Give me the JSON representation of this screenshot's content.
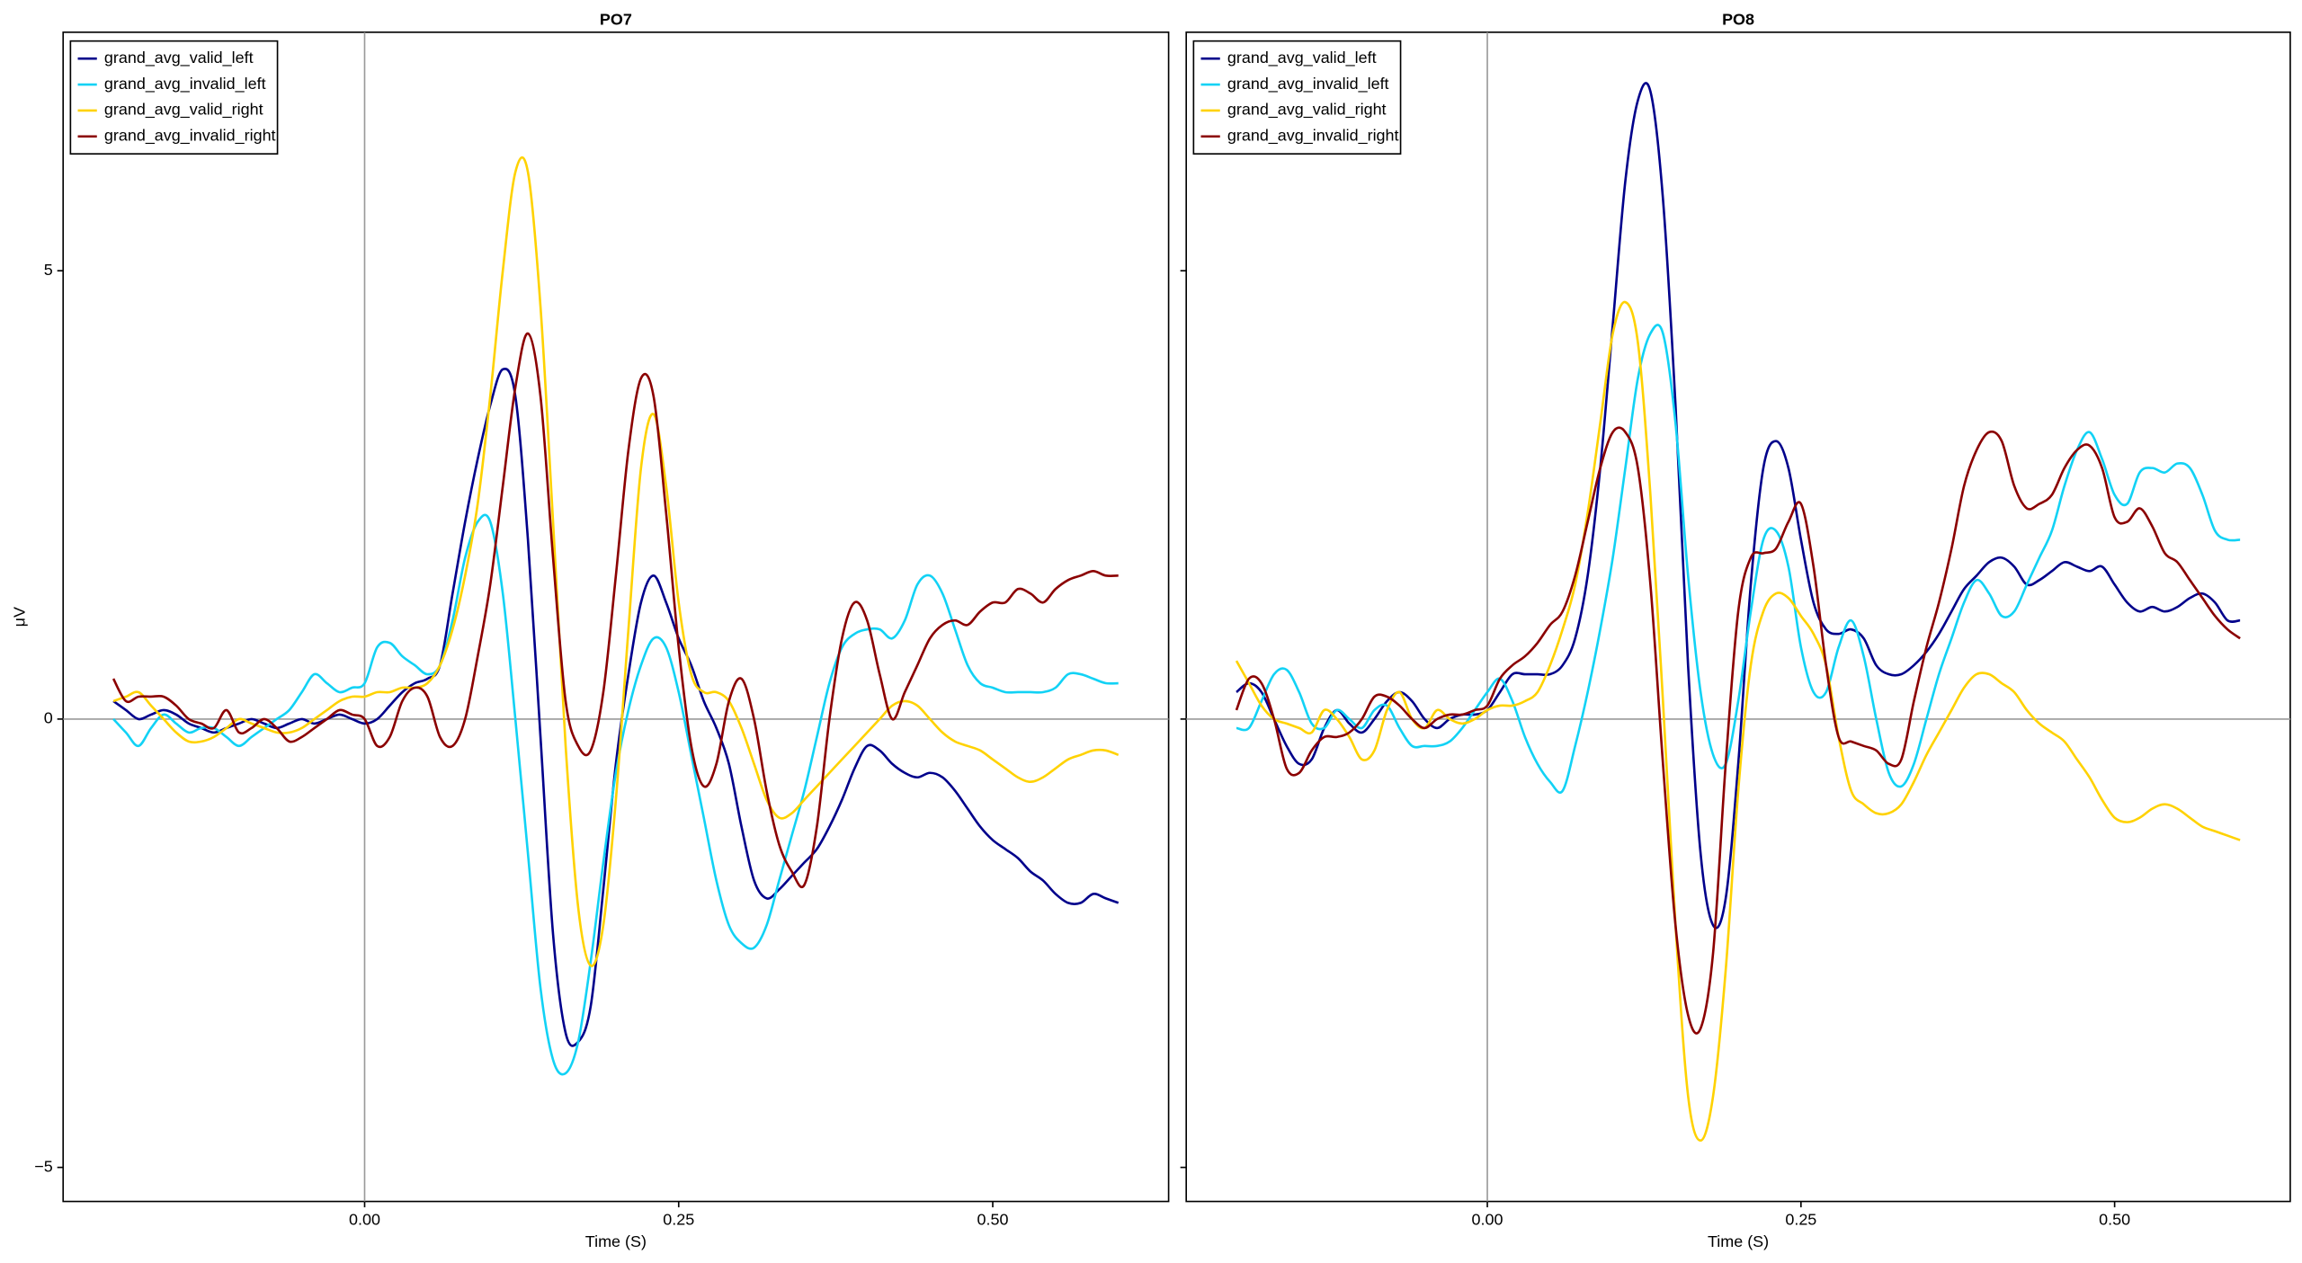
{
  "chart_data": [
    {
      "type": "line",
      "title": "PO7",
      "xlabel": "Time (S)",
      "ylabel": "μV",
      "xlim": [
        -0.24,
        0.64
      ],
      "ylim": [
        -5.38,
        7.66
      ],
      "xticks": [
        {
          "value": 0,
          "label": "0.00"
        },
        {
          "value": 0.25,
          "label": "0.25"
        },
        {
          "value": 0.5,
          "label": "0.50"
        }
      ],
      "yticks": [
        {
          "value": -5,
          "label": "−5"
        },
        0,
        5
      ],
      "ytick_labels": true,
      "zero_lines": true,
      "legend": "upper left",
      "x": [
        -0.2,
        -0.19,
        -0.18,
        -0.17,
        -0.16,
        -0.15,
        -0.14,
        -0.13,
        -0.12,
        -0.11,
        -0.1,
        -0.09,
        -0.08,
        -0.07,
        -0.06,
        -0.05,
        -0.04,
        -0.03,
        -0.02,
        -0.01,
        0,
        0.01,
        0.02,
        0.03,
        0.04,
        0.05,
        0.06,
        0.07,
        0.08,
        0.09,
        0.1,
        0.11,
        0.12,
        0.13,
        0.14,
        0.15,
        0.16,
        0.17,
        0.18,
        0.19,
        0.2,
        0.21,
        0.22,
        0.23,
        0.24,
        0.25,
        0.26,
        0.27,
        0.28,
        0.29,
        0.3,
        0.31,
        0.32,
        0.33,
        0.34,
        0.35,
        0.36,
        0.37,
        0.38,
        0.39,
        0.4,
        0.41,
        0.42,
        0.43,
        0.44,
        0.45,
        0.46,
        0.47,
        0.48,
        0.49,
        0.5,
        0.51,
        0.52,
        0.53,
        0.54,
        0.55,
        0.56,
        0.57,
        0.58,
        0.59,
        0.6
      ],
      "series": [
        {
          "name": "grand_avg_valid_left",
          "color": "#00008b",
          "values": [
            0.2,
            0.1,
            0.0,
            0.05,
            0.1,
            0.05,
            -0.05,
            -0.1,
            -0.15,
            -0.1,
            -0.05,
            0.0,
            -0.05,
            -0.1,
            -0.05,
            0.0,
            -0.05,
            0.0,
            0.05,
            0.0,
            -0.05,
            0.0,
            0.15,
            0.3,
            0.4,
            0.45,
            0.6,
            1.4,
            2.2,
            2.9,
            3.5,
            3.9,
            3.6,
            2.0,
            -0.2,
            -2.4,
            -3.5,
            -3.6,
            -3.2,
            -1.9,
            -0.5,
            0.5,
            1.3,
            1.6,
            1.3,
            0.9,
            0.6,
            0.2,
            -0.1,
            -0.5,
            -1.2,
            -1.8,
            -2.0,
            -1.9,
            -1.75,
            -1.6,
            -1.45,
            -1.2,
            -0.9,
            -0.55,
            -0.3,
            -0.35,
            -0.5,
            -0.6,
            -0.65,
            -0.6,
            -0.65,
            -0.8,
            -1.0,
            -1.2,
            -1.35,
            -1.45,
            -1.55,
            -1.7,
            -1.8,
            -1.95,
            -2.05,
            -2.05,
            -1.95,
            -2.0,
            -2.05
          ]
        },
        {
          "name": "grand_avg_invalid_left",
          "color": "#12d2f5",
          "values": [
            0,
            -0.15,
            -0.3,
            -0.1,
            0.05,
            -0.05,
            -0.15,
            -0.1,
            -0.1,
            -0.2,
            -0.3,
            -0.2,
            -0.1,
            0.0,
            0.1,
            0.3,
            0.5,
            0.4,
            0.3,
            0.35,
            0.4,
            0.8,
            0.85,
            0.7,
            0.6,
            0.5,
            0.6,
            1.1,
            1.8,
            2.2,
            2.2,
            1.4,
            0.0,
            -1.5,
            -3.0,
            -3.8,
            -3.95,
            -3.6,
            -2.7,
            -1.6,
            -0.6,
            0.1,
            0.6,
            0.9,
            0.8,
            0.3,
            -0.4,
            -1.1,
            -1.8,
            -2.3,
            -2.5,
            -2.55,
            -2.3,
            -1.8,
            -1.3,
            -0.8,
            -0.2,
            0.4,
            0.8,
            0.95,
            1.0,
            1.0,
            0.9,
            1.1,
            1.5,
            1.6,
            1.4,
            1.0,
            0.6,
            0.4,
            0.35,
            0.3,
            0.3,
            0.3,
            0.3,
            0.35,
            0.5,
            0.5,
            0.45,
            0.4,
            0.4
          ]
        },
        {
          "name": "grand_avg_valid_right",
          "color": "#ffd200",
          "values": [
            0.2,
            0.25,
            0.3,
            0.15,
            0.0,
            -0.15,
            -0.25,
            -0.25,
            -0.2,
            -0.1,
            0.0,
            -0.05,
            -0.1,
            -0.15,
            -0.15,
            -0.1,
            0.0,
            0.1,
            0.2,
            0.25,
            0.25,
            0.3,
            0.3,
            0.35,
            0.35,
            0.4,
            0.6,
            1.0,
            1.6,
            2.4,
            3.6,
            5.0,
            6.1,
            6.1,
            4.6,
            2.2,
            -0.3,
            -2.1,
            -2.75,
            -2.3,
            -0.9,
            1.0,
            2.8,
            3.4,
            2.6,
            1.3,
            0.5,
            0.3,
            0.3,
            0.2,
            -0.1,
            -0.5,
            -0.9,
            -1.1,
            -1.05,
            -0.9,
            -0.75,
            -0.6,
            -0.45,
            -0.3,
            -0.15,
            0.0,
            0.15,
            0.2,
            0.15,
            0.0,
            -0.15,
            -0.25,
            -0.3,
            -0.35,
            -0.45,
            -0.55,
            -0.65,
            -0.7,
            -0.65,
            -0.55,
            -0.45,
            -0.4,
            -0.35,
            -0.35,
            -0.4
          ]
        },
        {
          "name": "grand_avg_invalid_right",
          "color": "#8b0000",
          "values": [
            0.45,
            0.2,
            0.25,
            0.25,
            0.25,
            0.15,
            0.0,
            -0.05,
            -0.1,
            0.1,
            -0.15,
            -0.1,
            0.0,
            -0.1,
            -0.25,
            -0.2,
            -0.1,
            0.0,
            0.1,
            0.05,
            0.0,
            -0.3,
            -0.2,
            0.2,
            0.35,
            0.25,
            -0.2,
            -0.3,
            0.0,
            0.7,
            1.5,
            2.6,
            3.7,
            4.3,
            3.6,
            1.8,
            0.2,
            -0.3,
            -0.35,
            0.3,
            1.6,
            3.0,
            3.8,
            3.6,
            2.3,
            0.8,
            -0.3,
            -0.75,
            -0.5,
            0.2,
            0.45,
            0.0,
            -0.8,
            -1.4,
            -1.7,
            -1.85,
            -1.2,
            0.0,
            0.9,
            1.3,
            1.1,
            0.5,
            0.0,
            0.3,
            0.6,
            0.9,
            1.05,
            1.1,
            1.05,
            1.2,
            1.3,
            1.3,
            1.45,
            1.4,
            1.3,
            1.45,
            1.55,
            1.6,
            1.65,
            1.6,
            1.6
          ]
        }
      ]
    },
    {
      "type": "line",
      "title": "PO8",
      "xlabel": "Time (S)",
      "xlim": [
        -0.24,
        0.64
      ],
      "ylim": [
        -5.38,
        7.66
      ],
      "xticks": [
        {
          "value": 0,
          "label": "0.00"
        },
        {
          "value": 0.25,
          "label": "0.25"
        },
        {
          "value": 0.5,
          "label": "0.50"
        }
      ],
      "yticks": [
        -5,
        0,
        5
      ],
      "ytick_labels": false,
      "zero_lines": true,
      "legend": "upper left",
      "x": [
        -0.2,
        -0.19,
        -0.18,
        -0.17,
        -0.16,
        -0.15,
        -0.14,
        -0.13,
        -0.12,
        -0.11,
        -0.1,
        -0.09,
        -0.08,
        -0.07,
        -0.06,
        -0.05,
        -0.04,
        -0.03,
        -0.02,
        -0.01,
        0,
        0.01,
        0.02,
        0.03,
        0.04,
        0.05,
        0.06,
        0.07,
        0.08,
        0.09,
        0.1,
        0.11,
        0.12,
        0.13,
        0.14,
        0.15,
        0.16,
        0.17,
        0.18,
        0.19,
        0.2,
        0.21,
        0.22,
        0.23,
        0.24,
        0.25,
        0.26,
        0.27,
        0.28,
        0.29,
        0.3,
        0.31,
        0.32,
        0.33,
        0.34,
        0.35,
        0.36,
        0.37,
        0.38,
        0.39,
        0.4,
        0.41,
        0.42,
        0.43,
        0.44,
        0.45,
        0.46,
        0.47,
        0.48,
        0.49,
        0.5,
        0.51,
        0.52,
        0.53,
        0.54,
        0.55,
        0.56,
        0.57,
        0.58,
        0.59,
        0.6
      ],
      "series": [
        {
          "name": "grand_avg_valid_left",
          "color": "#00008b",
          "values": [
            0.3,
            0.4,
            0.3,
            0.0,
            -0.3,
            -0.5,
            -0.45,
            -0.1,
            0.1,
            -0.05,
            -0.15,
            0.0,
            0.2,
            0.3,
            0.2,
            0.0,
            -0.1,
            0.0,
            0.05,
            0.05,
            0.1,
            0.3,
            0.5,
            0.5,
            0.5,
            0.5,
            0.6,
            0.9,
            1.6,
            2.8,
            4.4,
            6.0,
            6.9,
            7.0,
            5.8,
            3.5,
            0.6,
            -1.5,
            -2.3,
            -2.0,
            -0.5,
            1.5,
            2.8,
            3.1,
            2.8,
            2.0,
            1.3,
            1.0,
            0.95,
            1.0,
            0.9,
            0.6,
            0.5,
            0.5,
            0.6,
            0.75,
            0.95,
            1.2,
            1.45,
            1.6,
            1.75,
            1.8,
            1.7,
            1.5,
            1.55,
            1.65,
            1.75,
            1.7,
            1.65,
            1.7,
            1.5,
            1.3,
            1.2,
            1.25,
            1.2,
            1.25,
            1.35,
            1.4,
            1.3,
            1.1,
            1.1
          ]
        },
        {
          "name": "grand_avg_invalid_left",
          "color": "#12d2f5",
          "values": [
            -0.1,
            -0.1,
            0.2,
            0.5,
            0.55,
            0.3,
            -0.05,
            -0.1,
            0.1,
            0.0,
            -0.1,
            0.1,
            0.15,
            -0.1,
            -0.3,
            -0.3,
            -0.3,
            -0.25,
            -0.1,
            0.1,
            0.3,
            0.45,
            0.2,
            -0.2,
            -0.5,
            -0.7,
            -0.8,
            -0.3,
            0.3,
            1.0,
            1.8,
            2.8,
            3.8,
            4.3,
            4.3,
            3.3,
            1.6,
            0.3,
            -0.4,
            -0.5,
            0.2,
            1.2,
            2.0,
            2.1,
            1.7,
            0.8,
            0.3,
            0.3,
            0.8,
            1.1,
            0.7,
            0.0,
            -0.6,
            -0.75,
            -0.5,
            0.0,
            0.5,
            0.9,
            1.3,
            1.55,
            1.4,
            1.15,
            1.2,
            1.5,
            1.8,
            2.1,
            2.6,
            3.0,
            3.2,
            2.9,
            2.5,
            2.4,
            2.75,
            2.8,
            2.75,
            2.85,
            2.8,
            2.5,
            2.1,
            2.0,
            2.0
          ]
        },
        {
          "name": "grand_avg_valid_right",
          "color": "#ffd200",
          "values": [
            0.65,
            0.4,
            0.15,
            0.0,
            -0.05,
            -0.1,
            -0.15,
            0.1,
            0.0,
            -0.2,
            -0.45,
            -0.35,
            0.1,
            0.3,
            0.0,
            -0.1,
            0.1,
            0.0,
            -0.05,
            0.0,
            0.1,
            0.15,
            0.15,
            0.2,
            0.3,
            0.6,
            1.0,
            1.5,
            2.3,
            3.3,
            4.3,
            4.65,
            4.2,
            2.5,
            0.2,
            -2.3,
            -4.2,
            -4.7,
            -4.2,
            -2.8,
            -0.8,
            0.6,
            1.2,
            1.4,
            1.35,
            1.15,
            0.95,
            0.6,
            -0.2,
            -0.8,
            -0.95,
            -1.05,
            -1.05,
            -0.95,
            -0.7,
            -0.4,
            -0.15,
            0.1,
            0.35,
            0.5,
            0.5,
            0.4,
            0.3,
            0.1,
            -0.05,
            -0.15,
            -0.25,
            -0.45,
            -0.65,
            -0.9,
            -1.1,
            -1.15,
            -1.1,
            -1.0,
            -0.95,
            -1.0,
            -1.1,
            -1.2,
            -1.25,
            -1.3,
            -1.35
          ]
        },
        {
          "name": "grand_avg_invalid_right",
          "color": "#8b0000",
          "values": [
            0.1,
            0.45,
            0.4,
            0.0,
            -0.55,
            -0.6,
            -0.35,
            -0.2,
            -0.2,
            -0.15,
            0.0,
            0.25,
            0.25,
            0.15,
            0.0,
            -0.1,
            0.0,
            0.05,
            0.05,
            0.1,
            0.15,
            0.45,
            0.6,
            0.7,
            0.85,
            1.05,
            1.2,
            1.6,
            2.2,
            2.8,
            3.2,
            3.2,
            2.8,
            1.5,
            -0.5,
            -2.3,
            -3.3,
            -3.45,
            -2.6,
            -0.5,
            1.2,
            1.8,
            1.85,
            1.9,
            2.2,
            2.4,
            1.7,
            0.6,
            -0.2,
            -0.25,
            -0.3,
            -0.35,
            -0.5,
            -0.45,
            0.2,
            0.8,
            1.3,
            1.9,
            2.6,
            3.0,
            3.2,
            3.1,
            2.6,
            2.35,
            2.4,
            2.5,
            2.8,
            3.0,
            3.05,
            2.8,
            2.25,
            2.2,
            2.35,
            2.15,
            1.85,
            1.75,
            1.55,
            1.35,
            1.15,
            1.0,
            0.9
          ]
        }
      ]
    }
  ]
}
